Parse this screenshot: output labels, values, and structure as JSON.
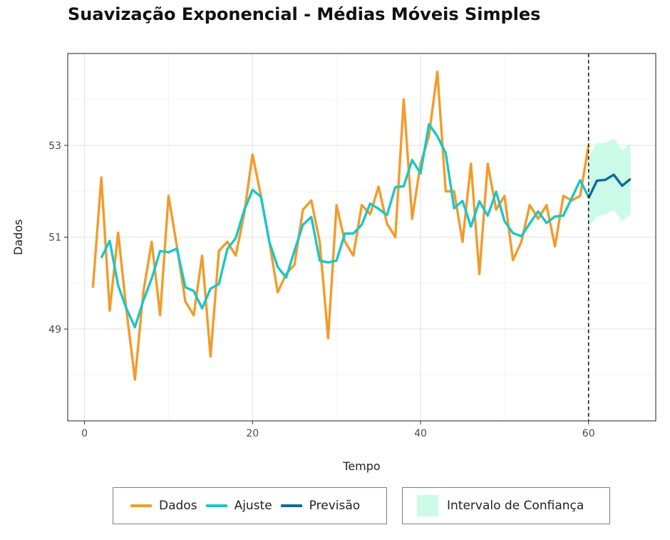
{
  "chart_data": {
    "type": "line",
    "title": "Suavização Exponencial - Médias Móveis Simples",
    "xlabel": "Tempo",
    "ylabel": "Dados",
    "xlim": [
      -2,
      68
    ],
    "ylim": [
      47.0,
      55.0
    ],
    "xticks": [
      0,
      20,
      40,
      60
    ],
    "yticks": [
      49,
      51,
      53
    ],
    "grid": true,
    "vline": 60,
    "series": [
      {
        "name": "Dados",
        "color": "#F39B2A",
        "x": [
          1,
          2,
          3,
          4,
          5,
          6,
          7,
          8,
          9,
          10,
          11,
          12,
          13,
          14,
          15,
          16,
          17,
          18,
          19,
          20,
          21,
          22,
          23,
          24,
          25,
          26,
          27,
          28,
          29,
          30,
          31,
          32,
          33,
          34,
          35,
          36,
          37,
          38,
          39,
          40,
          41,
          42,
          43,
          44,
          45,
          46,
          47,
          48,
          49,
          50,
          51,
          52,
          53,
          54,
          55,
          56,
          57,
          58,
          59,
          60
        ],
        "values": [
          49.9,
          52.3,
          49.4,
          51.1,
          49.4,
          47.9,
          49.8,
          50.9,
          49.3,
          51.9,
          50.8,
          49.6,
          49.3,
          50.6,
          48.4,
          50.7,
          50.9,
          50.6,
          51.5,
          52.8,
          51.9,
          50.9,
          49.8,
          50.2,
          50.4,
          51.6,
          51.8,
          50.9,
          48.8,
          51.7,
          50.9,
          50.6,
          51.7,
          51.5,
          52.1,
          51.3,
          51.0,
          54.0,
          51.4,
          52.6,
          53.2,
          54.6,
          52.0,
          52.0,
          50.9,
          52.6,
          50.2,
          52.6,
          51.6,
          51.9,
          50.5,
          50.9,
          51.7,
          51.4,
          51.7,
          50.8,
          51.9,
          51.8,
          51.9,
          53.0
        ]
      },
      {
        "name": "Ajuste",
        "color": "#1BC6C8",
        "x": [
          2,
          3,
          4,
          5,
          6,
          7,
          8,
          9,
          10,
          11,
          12,
          13,
          14,
          15,
          16,
          17,
          18,
          19,
          20,
          21,
          22,
          23,
          24,
          25,
          26,
          27,
          28,
          29,
          30,
          31,
          32,
          33,
          34,
          35,
          36,
          37,
          38,
          39,
          40,
          41,
          42,
          43,
          44,
          45,
          46,
          47,
          48,
          49,
          50,
          51,
          52,
          53,
          54,
          55,
          56,
          57,
          58,
          59,
          60
        ],
        "values": [
          50.55,
          50.92,
          49.95,
          49.44,
          49.04,
          49.62,
          50.1,
          50.7,
          50.67,
          50.75,
          49.91,
          49.83,
          49.45,
          49.88,
          49.98,
          50.74,
          50.98,
          51.58,
          52.03,
          51.88,
          50.9,
          50.35,
          50.12,
          50.71,
          51.27,
          51.44,
          50.49,
          50.45,
          50.49,
          51.08,
          51.08,
          51.27,
          51.73,
          51.62,
          51.48,
          52.09,
          52.11,
          52.68,
          52.39,
          53.46,
          53.2,
          52.83,
          51.63,
          51.79,
          51.23,
          51.78,
          51.47,
          51.99,
          51.35,
          51.09,
          51.02,
          51.3,
          51.56,
          51.31,
          51.45,
          51.47,
          51.85,
          52.24,
          51.88
        ]
      },
      {
        "name": "Previsão",
        "color": "#0E6B94",
        "x": [
          60,
          61,
          62,
          63,
          64,
          65
        ],
        "values": [
          51.85,
          52.23,
          52.25,
          52.36,
          52.12,
          52.27
        ]
      }
    ],
    "band": {
      "name": "Intervalo de Confiança",
      "color": "#CCFAE8",
      "x": [
        60,
        61,
        62,
        63,
        64,
        65
      ],
      "upper": [
        52.75,
        53.05,
        53.05,
        53.15,
        52.9,
        53.05
      ],
      "lower": [
        51.2,
        51.45,
        51.5,
        51.6,
        51.35,
        51.5
      ]
    }
  },
  "legend": {
    "dados": "Dados",
    "ajuste": "Ajuste",
    "previsao": "Previsão",
    "intervalo": "Intervalo de Confiança"
  }
}
